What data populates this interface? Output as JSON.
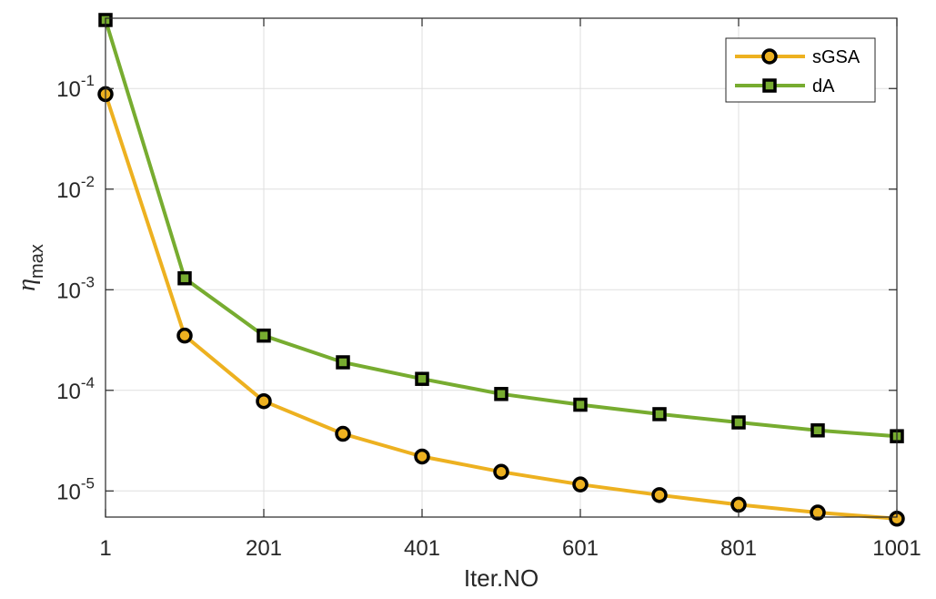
{
  "chart_data": {
    "type": "line",
    "x_scale": "linear",
    "y_scale": "log",
    "xlabel": "Iter.NO",
    "ylabel": {
      "main": "η",
      "sub": "max"
    },
    "xlim": [
      1,
      1001
    ],
    "ylim": [
      5.5e-06,
      0.5
    ],
    "xticks": [
      1,
      201,
      401,
      601,
      801,
      1001
    ],
    "xtick_labels": [
      "1",
      "201",
      "401",
      "601",
      "801",
      "1001"
    ],
    "yticks": [
      {
        "value": 1e-05,
        "base": "10",
        "exp": "-5"
      },
      {
        "value": 0.0001,
        "base": "10",
        "exp": "-4"
      },
      {
        "value": 0.001,
        "base": "10",
        "exp": "-3"
      },
      {
        "value": 0.01,
        "base": "10",
        "exp": "-2"
      },
      {
        "value": 0.1,
        "base": "10",
        "exp": "-1"
      }
    ],
    "grid": true,
    "legend_position": "top-right",
    "x": [
      1,
      101,
      201,
      301,
      401,
      501,
      601,
      701,
      801,
      901,
      1001
    ],
    "series": [
      {
        "name": "sGSA",
        "color": "#EDB120",
        "marker": "circle",
        "values": [
          0.088,
          0.00035,
          7.8e-05,
          3.7e-05,
          2.2e-05,
          1.55e-05,
          1.16e-05,
          9.1e-06,
          7.3e-06,
          6.1e-06,
          5.3e-06
        ]
      },
      {
        "name": "dA",
        "color": "#77AC30",
        "marker": "square",
        "values": [
          0.48,
          0.0013,
          0.00035,
          0.00019,
          0.00013,
          9.2e-05,
          7.2e-05,
          5.8e-05,
          4.8e-05,
          4e-05,
          3.5e-05
        ]
      }
    ]
  }
}
